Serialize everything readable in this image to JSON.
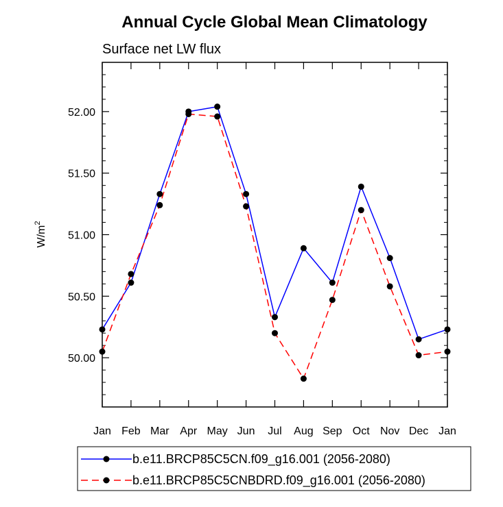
{
  "chart_data": {
    "type": "line",
    "title": "Annual Cycle Global Mean Climatology",
    "subtitle": "Surface net LW flux",
    "ylabel": "W/m",
    "ylabel_superscript": "2",
    "xlabel": "",
    "categories": [
      "Jan",
      "Feb",
      "Mar",
      "Apr",
      "May",
      "Jun",
      "Jul",
      "Aug",
      "Sep",
      "Oct",
      "Nov",
      "Dec",
      "Jan"
    ],
    "ylim": [
      49.6,
      52.4
    ],
    "yticks": [
      50.0,
      50.5,
      51.0,
      51.5,
      52.0
    ],
    "ytick_labels": [
      "50.00",
      "50.50",
      "51.00",
      "51.50",
      "52.00"
    ],
    "grid": false,
    "legend_position": "bottom",
    "series": [
      {
        "name": "b.e11.BRCP85C5CN.f09_g16.001 (2056-2080)",
        "color": "#0000ff",
        "dash": "solid",
        "marker": "filled-circle",
        "values": [
          50.23,
          50.61,
          51.33,
          52.0,
          52.04,
          51.33,
          50.33,
          50.89,
          50.61,
          51.39,
          50.81,
          50.15,
          50.23
        ]
      },
      {
        "name": "b.e11.BRCP85C5CNBDRD.f09_g16.001 (2056-2080)",
        "color": "#ff0000",
        "dash": "dashed",
        "marker": "filled-circle",
        "values": [
          50.05,
          50.68,
          51.24,
          51.98,
          51.96,
          51.23,
          50.2,
          49.83,
          50.47,
          51.2,
          50.58,
          50.02,
          50.05
        ]
      }
    ]
  }
}
